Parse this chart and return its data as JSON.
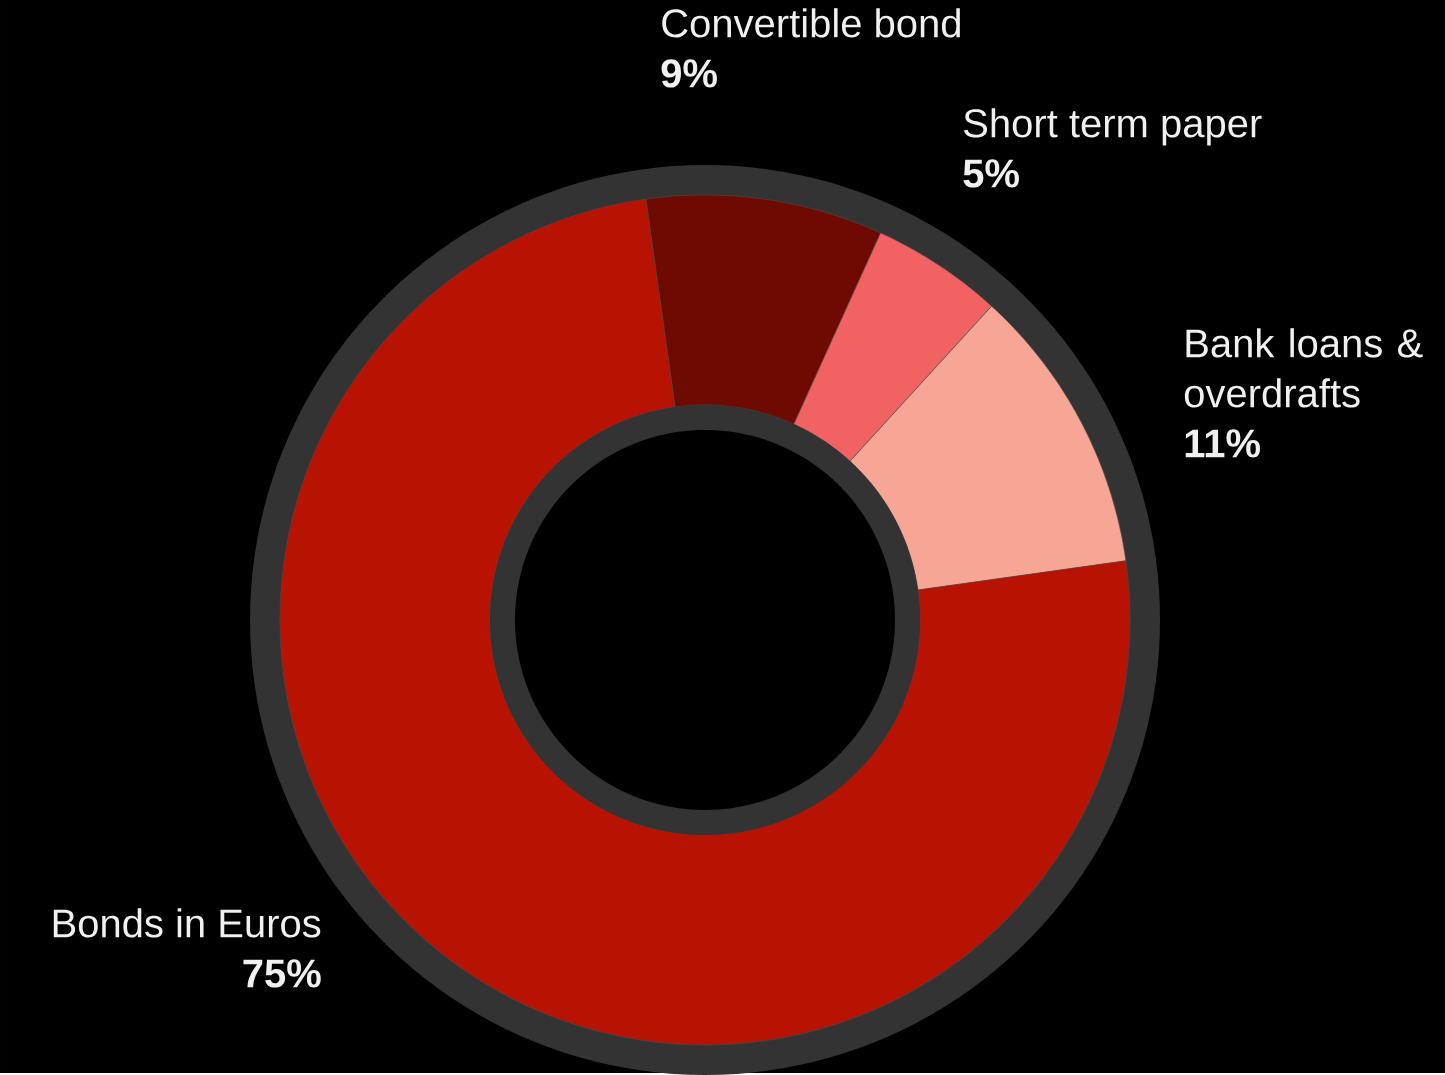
{
  "chart_data": {
    "type": "donut",
    "categories": [
      "Convertible bond",
      "Short term paper",
      "Bank loans & overdrafts",
      "Bonds in Euros"
    ],
    "values": [
      9,
      5,
      11,
      75
    ],
    "value_labels": [
      "9%",
      "5%",
      "11%",
      "75%"
    ],
    "colors": [
      "#6e0a02",
      "#f26262",
      "#f7a595",
      "#b81203"
    ]
  }
}
